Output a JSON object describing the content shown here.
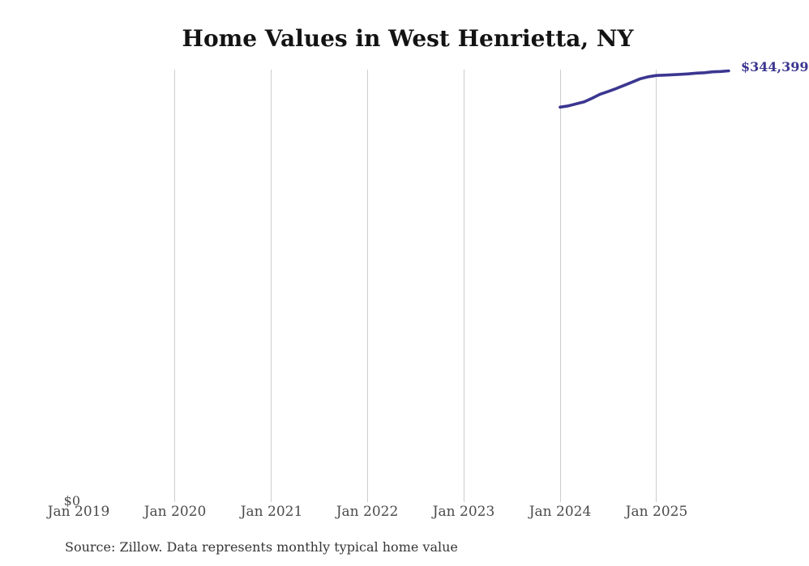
{
  "title": "Home Values in West Henrietta, NY",
  "source_note": "Source: Zillow. Data represents monthly typical home value",
  "end_value_label": "$344,399",
  "y_zero_label": "$0",
  "colors": {
    "line": "#3b3690",
    "gridline": "#cccccc",
    "title_text": "#131313",
    "tick_text": "#4a4a4a"
  },
  "chart_data": {
    "type": "line",
    "title": "Home Values in West Henrietta, NY",
    "xlabel": "",
    "ylabel": "",
    "ylim": [
      0,
      346000
    ],
    "grid": "vertical-only",
    "legend_position": "none",
    "x_tick_labels": [
      "Jan 2019",
      "Jan 2020",
      "Jan 2021",
      "Jan 2022",
      "Jan 2023",
      "Jan 2024",
      "Jan 2025"
    ],
    "y_tick_labels": [
      "$0"
    ],
    "x": [
      "Dec 2023",
      "Jan 2024",
      "Feb 2024",
      "Mar 2024",
      "Apr 2024",
      "May 2024",
      "Jun 2024",
      "Jul 2024",
      "Aug 2024",
      "Sep 2024",
      "Oct 2024",
      "Nov 2024",
      "Dec 2024",
      "Jan 2025",
      "Feb 2025",
      "Mar 2025",
      "Apr 2025",
      "May 2025",
      "Jun 2025",
      "Jul 2025",
      "Aug 2025",
      "Sep 2025"
    ],
    "series": [
      {
        "name": "Monthly typical home value",
        "color": "#3b3690",
        "values": [
          315400,
          316400,
          318000,
          319600,
          322600,
          325800,
          328000,
          330300,
          332900,
          335500,
          338100,
          339700,
          340700,
          341000,
          341300,
          341600,
          342000,
          342600,
          342900,
          343600,
          343900,
          344399
        ]
      }
    ],
    "end_annotation": "$344,399",
    "source": "Source: Zillow. Data represents monthly typical home value"
  }
}
